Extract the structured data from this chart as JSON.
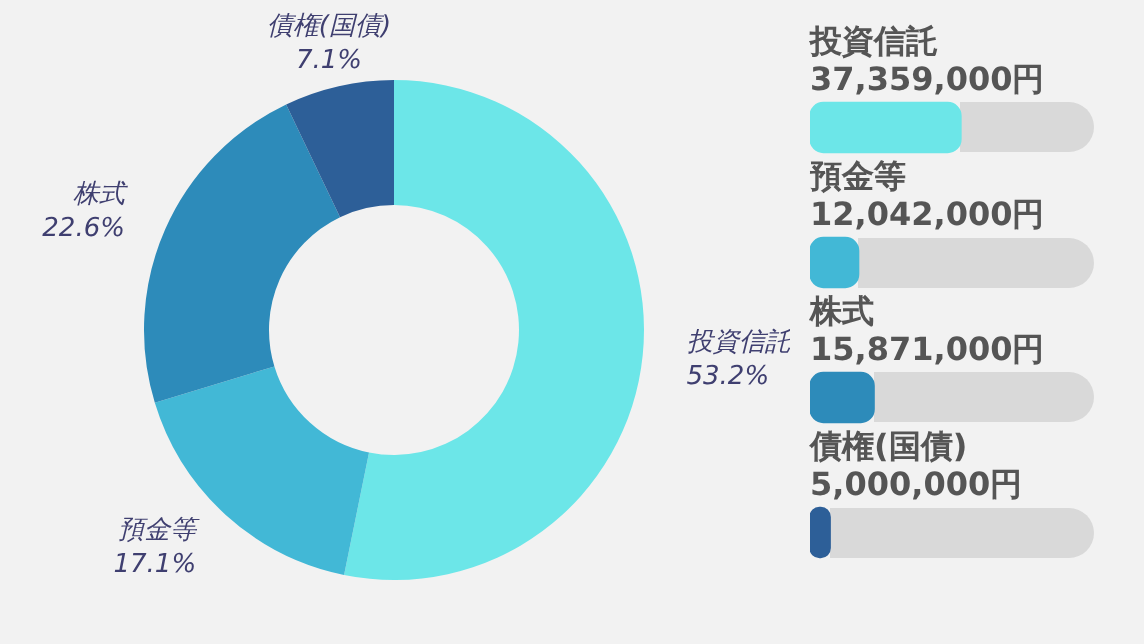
{
  "chart_data": [
    {
      "type": "donut",
      "categories": [
        "投資信託",
        "預金等",
        "株式",
        "債権(国債)"
      ],
      "values": [
        53.2,
        17.1,
        22.6,
        7.1
      ],
      "colors": [
        "#6ce6e8",
        "#42b8d6",
        "#2d8bba",
        "#2d5f98"
      ],
      "value_labels": [
        "53.2%",
        "17.1%",
        "22.6%",
        "7.1%"
      ],
      "legend": false
    },
    {
      "type": "bar",
      "orientation": "horizontal",
      "categories": [
        "投資信託",
        "預金等",
        "株式",
        "債権(国債)"
      ],
      "values": [
        37359000,
        12042000,
        15871000,
        5000000
      ],
      "colors": [
        "#6ce6e8",
        "#42b8d6",
        "#2d8bba",
        "#2d5f98"
      ],
      "value_labels": [
        "37,359,000円",
        "12,042,000円",
        "15,871,000円",
        "5,000,000円"
      ],
      "tick_labels": "y",
      "legend": false
    }
  ]
}
